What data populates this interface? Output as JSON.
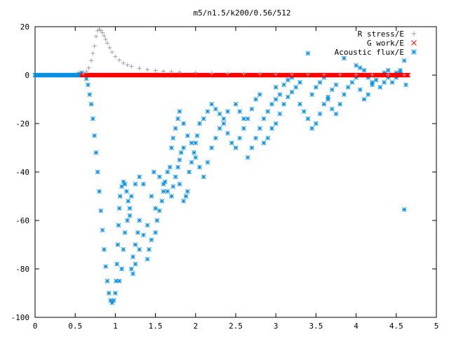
{
  "chart_data": {
    "type": "scatter",
    "title": "m5/n1.5/k200/0.56/512",
    "xlabel": "",
    "ylabel": "",
    "xlim": [
      0,
      5
    ],
    "ylim": [
      -100,
      20
    ],
    "x_ticks": [
      0,
      0.5,
      1,
      1.5,
      2,
      2.5,
      3,
      3.5,
      4,
      4.5,
      5
    ],
    "y_ticks": [
      20,
      0,
      -20,
      -40,
      -60,
      -80,
      -100
    ],
    "grid": false,
    "legend_position": "top-right",
    "series": [
      {
        "name": "R stress/E",
        "marker": "plus",
        "color": "#a0a0a0",
        "points": [
          [
            0,
            0
          ],
          [
            0.5,
            0.2
          ],
          [
            0.6,
            0.6
          ],
          [
            0.64,
            1.5
          ],
          [
            0.67,
            3
          ],
          [
            0.7,
            6
          ],
          [
            0.72,
            9
          ],
          [
            0.74,
            12
          ],
          [
            0.76,
            16
          ],
          [
            0.78,
            18.3
          ],
          [
            0.8,
            19
          ],
          [
            0.82,
            18.4
          ],
          [
            0.84,
            17.5
          ],
          [
            0.86,
            16.2
          ],
          [
            0.88,
            14.8
          ],
          [
            0.9,
            13.2
          ],
          [
            0.93,
            11.3
          ],
          [
            0.96,
            9.5
          ],
          [
            1.0,
            7.7
          ],
          [
            1.05,
            6.2
          ],
          [
            1.1,
            5.0
          ],
          [
            1.15,
            4.2
          ],
          [
            1.2,
            3.6
          ],
          [
            1.3,
            2.8
          ],
          [
            1.4,
            2.3
          ],
          [
            1.5,
            1.9
          ],
          [
            1.6,
            1.6
          ],
          [
            1.7,
            1.4
          ],
          [
            1.8,
            1.2
          ],
          [
            2.0,
            1.0
          ],
          [
            2.2,
            0.8
          ],
          [
            2.4,
            0.7
          ],
          [
            2.6,
            0.6
          ],
          [
            2.8,
            0.5
          ],
          [
            3.0,
            0.4
          ],
          [
            3.2,
            0.35
          ],
          [
            3.4,
            0.3
          ],
          [
            3.6,
            0.25
          ],
          [
            3.8,
            0.2
          ],
          [
            4.0,
            0.2
          ],
          [
            4.2,
            0.15
          ],
          [
            4.4,
            0.15
          ],
          [
            4.6,
            0.1
          ]
        ]
      },
      {
        "name": "G work/E",
        "marker": "cross",
        "color": "#ff0000",
        "x_range": [
          0.55,
          4.65
        ],
        "y_value": 0
      },
      {
        "name": "Acoustic flux/E",
        "marker": "star",
        "color": "#0a8fe0",
        "points": [
          [
            0,
            0
          ],
          [
            0.1,
            0
          ],
          [
            0.2,
            0
          ],
          [
            0.3,
            0
          ],
          [
            0.4,
            0
          ],
          [
            0.5,
            0
          ],
          [
            0.55,
            0.5
          ],
          [
            0.58,
            1
          ],
          [
            0.6,
            0.3
          ],
          [
            0.62,
            0
          ],
          [
            0.64,
            -1.5
          ],
          [
            0.66,
            -4
          ],
          [
            0.68,
            -8
          ],
          [
            0.7,
            -12
          ],
          [
            0.72,
            -18
          ],
          [
            0.74,
            -25
          ],
          [
            0.76,
            -32
          ],
          [
            0.78,
            -40
          ],
          [
            0.8,
            -48
          ],
          [
            0.82,
            -56
          ],
          [
            0.84,
            -64
          ],
          [
            0.86,
            -72
          ],
          [
            0.88,
            -79
          ],
          [
            0.9,
            -85
          ],
          [
            0.92,
            -90
          ],
          [
            0.94,
            -93
          ],
          [
            0.96,
            -94
          ],
          [
            0.98,
            -93
          ],
          [
            1.0,
            -90
          ],
          [
            1.01,
            -85
          ],
          [
            1.02,
            -78
          ],
          [
            1.03,
            -70
          ],
          [
            1.04,
            -62
          ],
          [
            1.05,
            -55
          ],
          [
            1.06,
            -50
          ],
          [
            1.08,
            -46
          ],
          [
            1.1,
            -44
          ],
          [
            1.12,
            -45
          ],
          [
            1.14,
            -48
          ],
          [
            1.16,
            -52
          ],
          [
            1.18,
            -58
          ],
          [
            1.05,
            -85
          ],
          [
            1.08,
            -80
          ],
          [
            1.1,
            -72
          ],
          [
            1.12,
            -65
          ],
          [
            1.15,
            -60
          ],
          [
            1.18,
            -55
          ],
          [
            1.2,
            -80
          ],
          [
            1.22,
            -75
          ],
          [
            1.25,
            -70
          ],
          [
            1.28,
            -65
          ],
          [
            1.3,
            -60
          ],
          [
            1.22,
            -82
          ],
          [
            1.25,
            -78
          ],
          [
            1.3,
            -72
          ],
          [
            1.35,
            -66
          ],
          [
            1.4,
            -62
          ],
          [
            1.2,
            -50
          ],
          [
            1.25,
            -45
          ],
          [
            1.3,
            -42
          ],
          [
            1.35,
            -45
          ],
          [
            1.45,
            -50
          ],
          [
            1.5,
            -55
          ],
          [
            1.52,
            -60
          ],
          [
            1.55,
            -56
          ],
          [
            1.58,
            -52
          ],
          [
            1.6,
            -48
          ],
          [
            1.62,
            -44
          ],
          [
            1.65,
            -40
          ],
          [
            1.68,
            -38
          ],
          [
            1.4,
            -76
          ],
          [
            1.42,
            -72
          ],
          [
            1.45,
            -68
          ],
          [
            1.5,
            -65
          ],
          [
            1.48,
            -40
          ],
          [
            1.55,
            -42
          ],
          [
            1.6,
            -45
          ],
          [
            1.65,
            -48
          ],
          [
            1.7,
            -50
          ],
          [
            1.72,
            -46
          ],
          [
            1.75,
            -42
          ],
          [
            1.78,
            -38
          ],
          [
            1.8,
            -35
          ],
          [
            1.82,
            -32
          ],
          [
            1.85,
            -30
          ],
          [
            1.8,
            -45
          ],
          [
            1.85,
            -52
          ],
          [
            1.88,
            -50
          ],
          [
            1.9,
            -48
          ],
          [
            1.92,
            -40
          ],
          [
            1.95,
            -36
          ],
          [
            1.98,
            -32
          ],
          [
            2.0,
            -28
          ],
          [
            2.02,
            -25
          ],
          [
            1.7,
            -30
          ],
          [
            1.72,
            -26
          ],
          [
            1.75,
            -22
          ],
          [
            1.78,
            -18
          ],
          [
            1.8,
            -15
          ],
          [
            1.85,
            -20
          ],
          [
            1.9,
            -25
          ],
          [
            1.95,
            -28
          ],
          [
            2.0,
            -34
          ],
          [
            2.05,
            -38
          ],
          [
            2.1,
            -42
          ],
          [
            2.15,
            -36
          ],
          [
            2.2,
            -30
          ],
          [
            2.25,
            -26
          ],
          [
            2.3,
            -22
          ],
          [
            2.35,
            -18
          ],
          [
            2.4,
            -15
          ],
          [
            2.05,
            -20
          ],
          [
            2.1,
            -18
          ],
          [
            2.15,
            -15
          ],
          [
            2.2,
            -12
          ],
          [
            2.25,
            -14
          ],
          [
            2.3,
            -16
          ],
          [
            2.35,
            -20
          ],
          [
            2.4,
            -24
          ],
          [
            2.45,
            -28
          ],
          [
            2.5,
            -30
          ],
          [
            2.55,
            -26
          ],
          [
            2.6,
            -22
          ],
          [
            2.65,
            -18
          ],
          [
            2.7,
            -14
          ],
          [
            2.75,
            -10
          ],
          [
            2.8,
            -8
          ],
          [
            2.5,
            -12
          ],
          [
            2.55,
            -15
          ],
          [
            2.6,
            -18
          ],
          [
            2.65,
            -34
          ],
          [
            2.7,
            -30
          ],
          [
            2.75,
            -26
          ],
          [
            2.8,
            -22
          ],
          [
            2.85,
            -18
          ],
          [
            2.9,
            -15
          ],
          [
            2.95,
            -12
          ],
          [
            3.0,
            -10
          ],
          [
            2.85,
            -28
          ],
          [
            2.9,
            -26
          ],
          [
            2.95,
            -22
          ],
          [
            3.0,
            -20
          ],
          [
            3.05,
            -16
          ],
          [
            3.1,
            -12
          ],
          [
            3.15,
            -9
          ],
          [
            3.2,
            -7
          ],
          [
            3.25,
            -5
          ],
          [
            3.3,
            -3
          ],
          [
            3.0,
            -5
          ],
          [
            3.05,
            -8
          ],
          [
            3.1,
            -4
          ],
          [
            3.15,
            -2
          ],
          [
            3.2,
            -1
          ],
          [
            3.3,
            -12
          ],
          [
            3.35,
            -15
          ],
          [
            3.4,
            -18
          ],
          [
            3.45,
            -22
          ],
          [
            3.5,
            -20
          ],
          [
            3.55,
            -16
          ],
          [
            3.6,
            -12
          ],
          [
            3.65,
            -9
          ],
          [
            3.7,
            -6
          ],
          [
            3.75,
            -4
          ],
          [
            3.45,
            -8
          ],
          [
            3.5,
            -5
          ],
          [
            3.55,
            -3
          ],
          [
            3.6,
            -1
          ],
          [
            3.65,
            -10
          ],
          [
            3.7,
            -14
          ],
          [
            3.75,
            -16
          ],
          [
            3.8,
            -12
          ],
          [
            3.85,
            -8
          ],
          [
            3.9,
            -5
          ],
          [
            3.95,
            -3
          ],
          [
            4.0,
            -1
          ],
          [
            3.4,
            9
          ],
          [
            3.85,
            7
          ],
          [
            4.0,
            4
          ],
          [
            4.05,
            -6
          ],
          [
            4.1,
            -10
          ],
          [
            4.15,
            -8
          ],
          [
            4.2,
            -4
          ],
          [
            4.25,
            -2
          ],
          [
            4.3,
            0
          ],
          [
            4.35,
            1
          ],
          [
            4.4,
            2
          ],
          [
            4.45,
            -3
          ],
          [
            4.5,
            -1
          ],
          [
            4.55,
            1
          ],
          [
            4.6,
            6
          ],
          [
            4.62,
            -4
          ],
          [
            4.6,
            -55.5
          ],
          [
            4.05,
            3
          ],
          [
            4.1,
            2
          ],
          [
            4.15,
            -1
          ],
          [
            4.2,
            -3
          ],
          [
            4.3,
            -5
          ],
          [
            4.35,
            -3
          ],
          [
            4.4,
            -1
          ],
          [
            4.45,
            0
          ],
          [
            4.5,
            1
          ],
          [
            4.55,
            2
          ]
        ]
      }
    ]
  }
}
